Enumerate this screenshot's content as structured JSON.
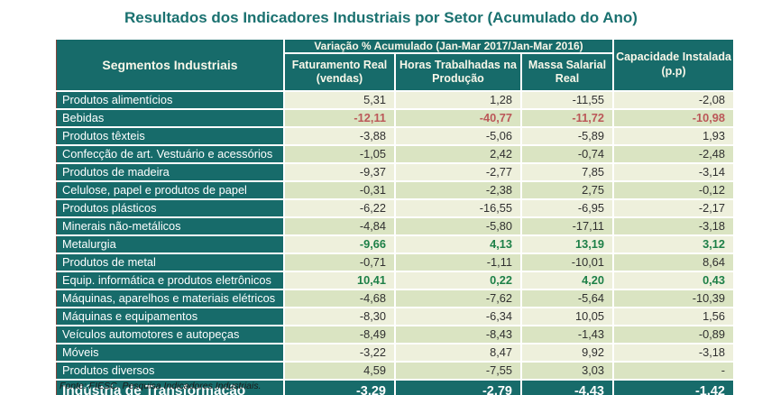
{
  "title": "Resultados dos Indicadores Industriais por Setor (Acumulado do Ano)",
  "colors": {
    "teal_header": "#176b6a",
    "row_light": "#eef0dc",
    "row_dark": "#dae4c2",
    "negative_highlight_red": "#bb5758",
    "positive_highlight_green": "#1e8048",
    "title_teal": "#1a7170"
  },
  "table": {
    "corner_header": "Segmentos Industriais",
    "group_header": "Variação % Acumulado (Jan-Mar 2017/Jan-Mar 2016)",
    "sub_headers": [
      "Faturamento Real (vendas)",
      "Horas Trabalhadas na Produção",
      "Massa Salarial Real"
    ],
    "capacity_header": "Capacidade Instalada (p.p)",
    "rows": [
      {
        "label": "Produtos alimentícios",
        "values": [
          "5,31",
          "1,28",
          "-11,55",
          "-2,08"
        ],
        "highlight": null
      },
      {
        "label": "Bebidas",
        "values": [
          "-12,11",
          "-40,77",
          "-11,72",
          "-10,98"
        ],
        "highlight": "red"
      },
      {
        "label": "Produtos têxteis",
        "values": [
          "-3,88",
          "-5,06",
          "-5,89",
          "1,93"
        ],
        "highlight": null
      },
      {
        "label": "Confecção de art. Vestuário e acessórios",
        "values": [
          "-1,05",
          "2,42",
          "-0,74",
          "-2,48"
        ],
        "highlight": null
      },
      {
        "label": "Produtos de madeira",
        "values": [
          "-9,37",
          "-2,77",
          "7,85",
          "-3,14"
        ],
        "highlight": null
      },
      {
        "label": "Celulose, papel e produtos de papel",
        "values": [
          "-0,31",
          "-2,38",
          "2,75",
          "-0,12"
        ],
        "highlight": null
      },
      {
        "label": "Produtos plásticos",
        "values": [
          "-6,22",
          "-16,55",
          "-6,95",
          "-2,17"
        ],
        "highlight": null
      },
      {
        "label": "Minerais não-metálicos",
        "values": [
          "-4,84",
          "-5,80",
          "-17,11",
          "-3,18"
        ],
        "highlight": null
      },
      {
        "label": "Metalurgia",
        "values": [
          "-9,66",
          "4,13",
          "13,19",
          "3,12"
        ],
        "highlight": "green"
      },
      {
        "label": "Produtos de metal",
        "values": [
          "-0,71",
          "-1,11",
          "-10,01",
          "8,64"
        ],
        "highlight": null
      },
      {
        "label": "Equip. informática e produtos eletrônicos",
        "values": [
          "10,41",
          "0,22",
          "4,20",
          "0,43"
        ],
        "highlight": "green"
      },
      {
        "label": "Máquinas, aparelhos e materiais elétricos",
        "values": [
          "-4,68",
          "-7,62",
          "-5,64",
          "-10,39"
        ],
        "highlight": null
      },
      {
        "label": "Máquinas e equipamentos",
        "values": [
          "-8,30",
          "-6,34",
          "10,05",
          "1,56"
        ],
        "highlight": null
      },
      {
        "label": "Veículos automotores e autopeças",
        "values": [
          "-8,49",
          "-8,43",
          "-1,43",
          "-0,89"
        ],
        "highlight": null
      },
      {
        "label": "Móveis",
        "values": [
          "-3,22",
          "8,47",
          "9,92",
          "-3,18"
        ],
        "highlight": null
      },
      {
        "label": "Produtos diversos",
        "values": [
          "4,59",
          "-7,55",
          "3,03",
          "-"
        ],
        "highlight": null
      }
    ],
    "total_row": {
      "label": "Indústria de Transformação",
      "values": [
        "-3,29",
        "-2,79",
        "-4,43",
        "-1,42"
      ]
    }
  },
  "footer": "Fonte: FIESC. Pesquisa Indicadores Industriais.",
  "chart_data": {
    "type": "table",
    "title": "Resultados dos Indicadores Industriais por Setor (Acumulado do Ano)",
    "group_header": "Variação % Acumulado (Jan-Mar 2017/Jan-Mar 2016)",
    "columns": [
      "Segmentos Industriais",
      "Faturamento Real (vendas)",
      "Horas Trabalhadas na Produção",
      "Massa Salarial Real",
      "Capacidade Instalada (p.p)"
    ],
    "rows": [
      [
        "Produtos alimentícios",
        5.31,
        1.28,
        -11.55,
        -2.08
      ],
      [
        "Bebidas",
        -12.11,
        -40.77,
        -11.72,
        -10.98
      ],
      [
        "Produtos têxteis",
        -3.88,
        -5.06,
        -5.89,
        1.93
      ],
      [
        "Confecção de art. Vestuário e acessórios",
        -1.05,
        2.42,
        -0.74,
        -2.48
      ],
      [
        "Produtos de madeira",
        -9.37,
        -2.77,
        7.85,
        -3.14
      ],
      [
        "Celulose, papel e produtos de papel",
        -0.31,
        -2.38,
        2.75,
        -0.12
      ],
      [
        "Produtos plásticos",
        -6.22,
        -16.55,
        -6.95,
        -2.17
      ],
      [
        "Minerais não-metálicos",
        -4.84,
        -5.8,
        -17.11,
        -3.18
      ],
      [
        "Metalurgia",
        -9.66,
        4.13,
        13.19,
        3.12
      ],
      [
        "Produtos de metal",
        -0.71,
        -1.11,
        -10.01,
        8.64
      ],
      [
        "Equip. informática e produtos eletrônicos",
        10.41,
        0.22,
        4.2,
        0.43
      ],
      [
        "Máquinas, aparelhos e materiais elétricos",
        -4.68,
        -7.62,
        -5.64,
        -10.39
      ],
      [
        "Máquinas e equipamentos",
        -8.3,
        -6.34,
        10.05,
        1.56
      ],
      [
        "Veículos automotores e autopeças",
        -8.49,
        -8.43,
        -1.43,
        -0.89
      ],
      [
        "Móveis",
        -3.22,
        8.47,
        9.92,
        -3.18
      ],
      [
        "Produtos diversos",
        4.59,
        -7.55,
        3.03,
        null
      ]
    ],
    "total": [
      "Indústria de Transformação",
      -3.29,
      -2.79,
      -4.43,
      -1.42
    ],
    "source": "Fonte: FIESC. Pesquisa Indicadores Industriais.",
    "highlighted_rows": {
      "red_worst": "Bebidas",
      "green_best": [
        "Metalurgia",
        "Equip. informática e produtos eletrônicos"
      ]
    }
  }
}
